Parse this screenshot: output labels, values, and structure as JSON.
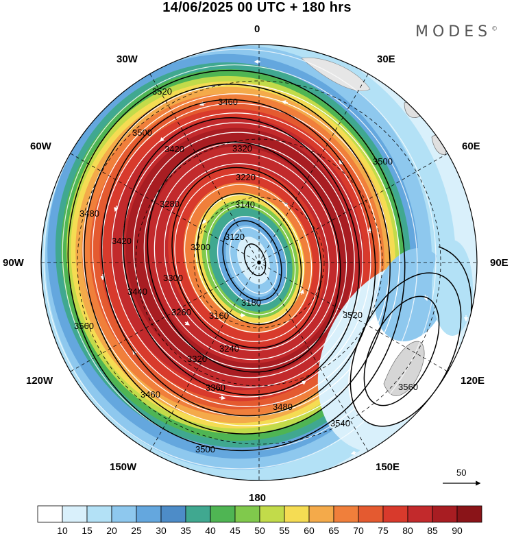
{
  "header": {
    "title": "14/06/2025  00 UTC  + 180 hrs"
  },
  "brand": {
    "name": "MODES",
    "mark": "©"
  },
  "longitude_labels": {
    "top": "0",
    "top_left": "30W",
    "top_right": "30E",
    "upper_left": "60W",
    "upper_right": "60E",
    "left": "90W",
    "right": "90E",
    "lower_left": "120W",
    "lower_right": "120E",
    "bottom_left": "150W",
    "bottom_right": "150E",
    "bottom": "180"
  },
  "contour_labels": [
    "3520",
    "3460",
    "3420",
    "3320",
    "3280",
    "3500",
    "3480",
    "3420",
    "3220",
    "3140",
    "3120",
    "3200",
    "3180",
    "3160",
    "3240",
    "3320",
    "3360",
    "3460",
    "3480",
    "3500",
    "3520",
    "3540",
    "3560",
    "3500",
    "3440",
    "3300",
    "3260",
    "3560"
  ],
  "vector_reference": {
    "label": "50"
  },
  "colorbar": {
    "ticks": [
      "10",
      "15",
      "20",
      "25",
      "30",
      "35",
      "40",
      "45",
      "50",
      "55",
      "60",
      "65",
      "70",
      "75",
      "80",
      "85",
      "90"
    ],
    "colors": [
      "#ffffff",
      "#d9f0fb",
      "#b3e1f6",
      "#8ec8ee",
      "#64a7de",
      "#4d8cc8",
      "#40a890",
      "#4fb553",
      "#80c94c",
      "#c2db4a",
      "#f5dc53",
      "#f4aa4a",
      "#f07f3b",
      "#e45a30",
      "#d83a2c",
      "#c22a2c",
      "#a81d22",
      "#8a1418"
    ]
  }
}
